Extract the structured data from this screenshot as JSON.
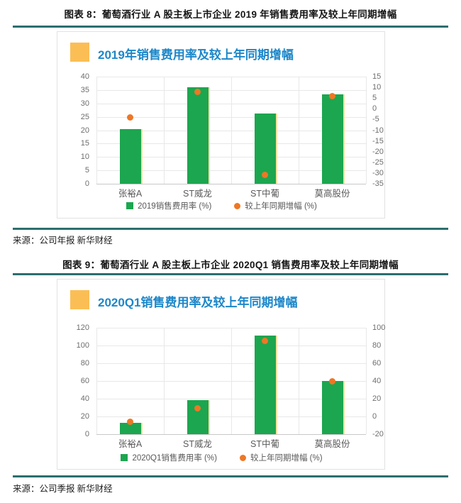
{
  "figures": [
    {
      "caption": "图表 8：葡萄酒行业 A 股主板上市企业 2019 年销售费用率及较上年同期增幅",
      "source": "来源：公司年报  新华财经"
    },
    {
      "caption": "图表 9：葡萄酒行业 A 股主板上市企业 2020Q1 销售费用率及较上年同期增幅",
      "source": "来源：公司季报  新华财经"
    }
  ],
  "colors": {
    "bar_green": "#1CA64F",
    "bar_edge_yellow": "#F6DD96",
    "dot_orange": "#EE7725",
    "title_blue": "#1C87C9",
    "accent_yellow": "#FBBE55",
    "rule_teal": "#2C6E6E",
    "grid_gray": "#E8E8E8",
    "tick_gray": "#6E6E6E"
  },
  "chart_data": [
    {
      "type": "bar",
      "title": "2019年销售费用率及较上年同期增幅",
      "categories": [
        "张裕A",
        "ST威龙",
        "ST中葡",
        "莫高股份"
      ],
      "series": [
        {
          "name": "2019销售费用率 (%)",
          "kind": "bar",
          "axis": "left",
          "values": [
            20.5,
            36,
            26.3,
            33.5
          ]
        },
        {
          "name": "较上年同期增幅 (%)",
          "kind": "point",
          "axis": "right",
          "values": [
            -4,
            8,
            -31,
            6
          ]
        }
      ],
      "left_axis": {
        "min": 0,
        "max": 40,
        "step": 5
      },
      "right_axis": {
        "min": -35,
        "max": 15,
        "step": 5
      },
      "grid": true,
      "legend_position": "bottom"
    },
    {
      "type": "bar",
      "title": "2020Q1销售费用率及较上年同期增幅",
      "categories": [
        "张裕A",
        "ST威龙",
        "ST中葡",
        "莫高股份"
      ],
      "series": [
        {
          "name": "2020Q1销售费用率 (%)",
          "kind": "bar",
          "axis": "left",
          "values": [
            12.5,
            38.5,
            111,
            60
          ]
        },
        {
          "name": "较上年同期增幅 (%)",
          "kind": "point",
          "axis": "right",
          "values": [
            -6,
            9,
            85,
            40
          ]
        }
      ],
      "left_axis": {
        "min": 0,
        "max": 120,
        "step": 20
      },
      "right_axis": {
        "min": -20,
        "max": 100,
        "step": 20
      },
      "grid": true,
      "legend_position": "bottom"
    }
  ]
}
